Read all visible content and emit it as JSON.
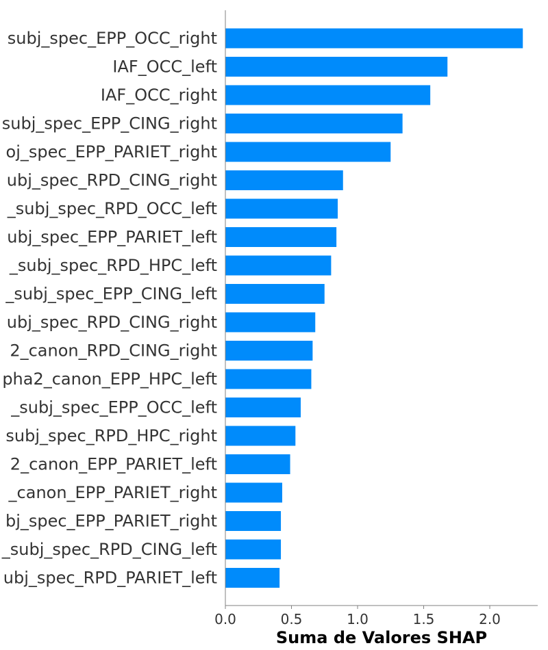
{
  "chart_data": {
    "type": "bar",
    "orientation": "horizontal",
    "title": "",
    "xlabel": "Suma de Valores SHAP",
    "ylabel": "",
    "xlim": [
      0,
      2.35
    ],
    "xticks": [
      {
        "value": 0.0,
        "label": "0.0"
      },
      {
        "value": 0.5,
        "label": "0.5"
      },
      {
        "value": 1.0,
        "label": "1.0"
      },
      {
        "value": 1.5,
        "label": "1.5"
      },
      {
        "value": 2.0,
        "label": "2.0"
      }
    ],
    "grid": false,
    "bar_color": "#008bfb",
    "categories": [
      "subj_spec_EPP_OCC_right",
      "IAF_OCC_left",
      "IAF_OCC_right",
      "subj_spec_EPP_CING_right",
      "oj_spec_EPP_PARIET_right",
      "ubj_spec_RPD_CING_right",
      "_subj_spec_RPD_OCC_left",
      "ubj_spec_EPP_PARIET_left",
      "_subj_spec_RPD_HPC_left",
      "_subj_spec_EPP_CING_left",
      "ubj_spec_RPD_CING_right",
      "2_canon_RPD_CING_right",
      "pha2_canon_EPP_HPC_left",
      "_subj_spec_EPP_OCC_left",
      "subj_spec_RPD_HPC_right",
      "2_canon_EPP_PARIET_left",
      "_canon_EPP_PARIET_right",
      "bj_spec_EPP_PARIET_right",
      "_subj_spec_RPD_CING_left",
      "ubj_spec_RPD_PARIET_left"
    ],
    "values": [
      2.25,
      1.68,
      1.55,
      1.34,
      1.25,
      0.89,
      0.85,
      0.84,
      0.8,
      0.75,
      0.68,
      0.66,
      0.65,
      0.57,
      0.53,
      0.49,
      0.43,
      0.42,
      0.42,
      0.41
    ]
  }
}
